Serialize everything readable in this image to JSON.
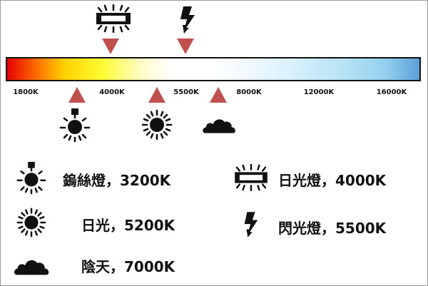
{
  "scale": {
    "ticks": [
      "1800K",
      "4000K",
      "5500K",
      "8000K",
      "12000K",
      "16000K"
    ]
  },
  "top_markers": [
    {
      "icon": "fluorescent-tube-icon",
      "temperature": "4000K"
    },
    {
      "icon": "lightning-flash-icon",
      "temperature": "5500K"
    }
  ],
  "bottom_markers": [
    {
      "icon": "tungsten-bulb-icon",
      "temperature": "3200K"
    },
    {
      "icon": "sun-icon",
      "temperature": "5200K"
    },
    {
      "icon": "cloud-icon",
      "temperature": "7000K"
    }
  ],
  "legend": [
    {
      "icon": "tungsten-bulb-icon",
      "label": "鎢絲燈，3200K"
    },
    {
      "icon": "fluorescent-tube-icon",
      "label": "日光燈，4000K"
    },
    {
      "icon": "sun-icon",
      "label": "日光，5200K"
    },
    {
      "icon": "lightning-flash-icon",
      "label": "閃光燈，5500K"
    },
    {
      "icon": "cloud-icon",
      "label": "陰天，7000K"
    }
  ],
  "colors": {
    "marker": "#c0504d",
    "icon": "#111111",
    "gradient_warm": "#e60000",
    "gradient_cool": "#5b9fd8"
  }
}
